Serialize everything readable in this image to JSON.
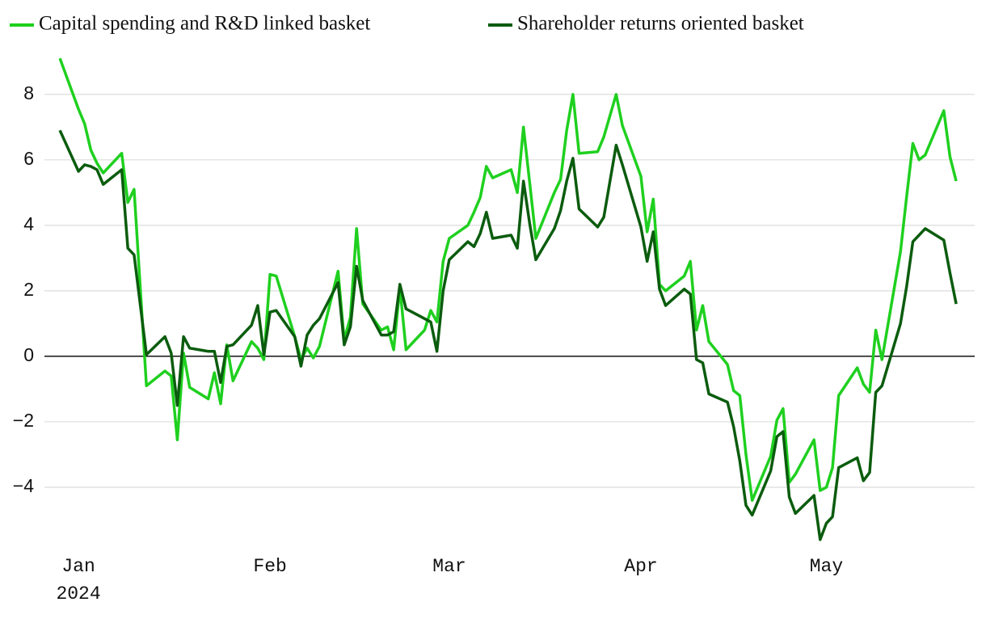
{
  "chart_data": {
    "type": "line",
    "x": [
      -3,
      0,
      1,
      2,
      3,
      4,
      7,
      8,
      9,
      11,
      14,
      15,
      16,
      17,
      18,
      21,
      22,
      23,
      24,
      25,
      28,
      29,
      30,
      31,
      32,
      35,
      36,
      37,
      38,
      39,
      42,
      43,
      44,
      45,
      46,
      49,
      50,
      51,
      52,
      53,
      56,
      57,
      58,
      59,
      60,
      63,
      64,
      65,
      66,
      67,
      70,
      71,
      72,
      73,
      74,
      77,
      78,
      79,
      80,
      81,
      84,
      85,
      87,
      88,
      91,
      92,
      93,
      94,
      95,
      98,
      99,
      100,
      101,
      102,
      105,
      106,
      107,
      108,
      109,
      112,
      113,
      114,
      115,
      116,
      119,
      120,
      121,
      122,
      123,
      126,
      127,
      128,
      129,
      130,
      133,
      134,
      135,
      136,
      137,
      140,
      141,
      142
    ],
    "series": [
      {
        "name": "Capital spending and R&D linked basket",
        "color": "#1fd01f",
        "values": [
          9.1,
          7.55,
          7.1,
          6.3,
          5.9,
          5.6,
          6.2,
          4.7,
          5.1,
          -0.9,
          -0.45,
          -0.6,
          -2.55,
          0.1,
          -0.95,
          -1.3,
          -0.5,
          -1.45,
          0.35,
          -0.75,
          0.45,
          0.25,
          -0.1,
          2.5,
          2.45,
          0.6,
          -0.1,
          0.25,
          -0.05,
          0.3,
          2.6,
          0.5,
          1.2,
          3.9,
          1.6,
          0.8,
          0.9,
          0.2,
          2.1,
          0.2,
          0.8,
          1.4,
          1.05,
          2.9,
          3.6,
          4.0,
          4.4,
          4.85,
          5.8,
          5.45,
          5.7,
          5.0,
          7.0,
          5.3,
          3.6,
          5.0,
          5.4,
          6.9,
          8.0,
          6.2,
          6.25,
          6.7,
          8.0,
          7.05,
          5.5,
          3.8,
          4.8,
          2.2,
          2.0,
          2.45,
          2.9,
          0.8,
          1.55,
          0.45,
          -0.25,
          -1.05,
          -1.2,
          -3.0,
          -4.4,
          -3.05,
          -1.95,
          -1.6,
          -3.85,
          -3.6,
          -2.55,
          -4.1,
          -4.0,
          -3.4,
          -1.2,
          -0.35,
          -0.85,
          -1.1,
          0.8,
          -0.1,
          3.2,
          4.9,
          6.5,
          6.0,
          6.15,
          7.5,
          6.1,
          5.35
        ]
      },
      {
        "name": "Shareholder returns oriented basket",
        "color": "#0b5c0e",
        "values": [
          6.9,
          5.65,
          5.85,
          5.8,
          5.7,
          5.25,
          5.7,
          3.3,
          3.1,
          0.05,
          0.6,
          0.1,
          -1.5,
          0.6,
          0.25,
          0.15,
          0.15,
          -0.8,
          0.3,
          0.35,
          0.95,
          1.55,
          0.05,
          1.35,
          1.4,
          0.6,
          -0.3,
          0.65,
          0.95,
          1.15,
          2.25,
          0.35,
          0.9,
          2.75,
          1.7,
          0.65,
          0.65,
          0.75,
          2.2,
          1.45,
          1.15,
          1.05,
          0.15,
          2.0,
          2.95,
          3.5,
          3.35,
          3.75,
          4.4,
          3.6,
          3.7,
          3.3,
          5.35,
          4.05,
          2.95,
          3.9,
          4.45,
          5.35,
          6.05,
          4.5,
          3.95,
          4.25,
          6.45,
          5.85,
          3.95,
          2.9,
          3.8,
          2.05,
          1.55,
          2.05,
          1.9,
          -0.1,
          -0.2,
          -1.15,
          -1.4,
          -2.15,
          -3.2,
          -4.55,
          -4.85,
          -3.5,
          -2.45,
          -2.3,
          -4.3,
          -4.8,
          -4.25,
          -5.6,
          -5.1,
          -4.9,
          -3.4,
          -3.1,
          -3.8,
          -3.55,
          -1.1,
          -0.9,
          1.0,
          2.15,
          3.5,
          3.7,
          3.9,
          3.55,
          2.55,
          1.6
        ]
      }
    ],
    "xlim": [
      -5.5,
      145
    ],
    "xticks": [
      {
        "value": 0,
        "label": "Jan",
        "sublabel": "2024"
      },
      {
        "value": 31,
        "label": "Feb"
      },
      {
        "value": 60,
        "label": "Mar"
      },
      {
        "value": 91,
        "label": "Apr"
      },
      {
        "value": 121,
        "label": "May"
      }
    ],
    "ylim": [
      -6,
      9.5
    ],
    "yticks": [
      {
        "value": -4,
        "label": "−4"
      },
      {
        "value": -2,
        "label": "−2"
      },
      0,
      2,
      4,
      6,
      8
    ],
    "grid": true,
    "legend": "top"
  }
}
